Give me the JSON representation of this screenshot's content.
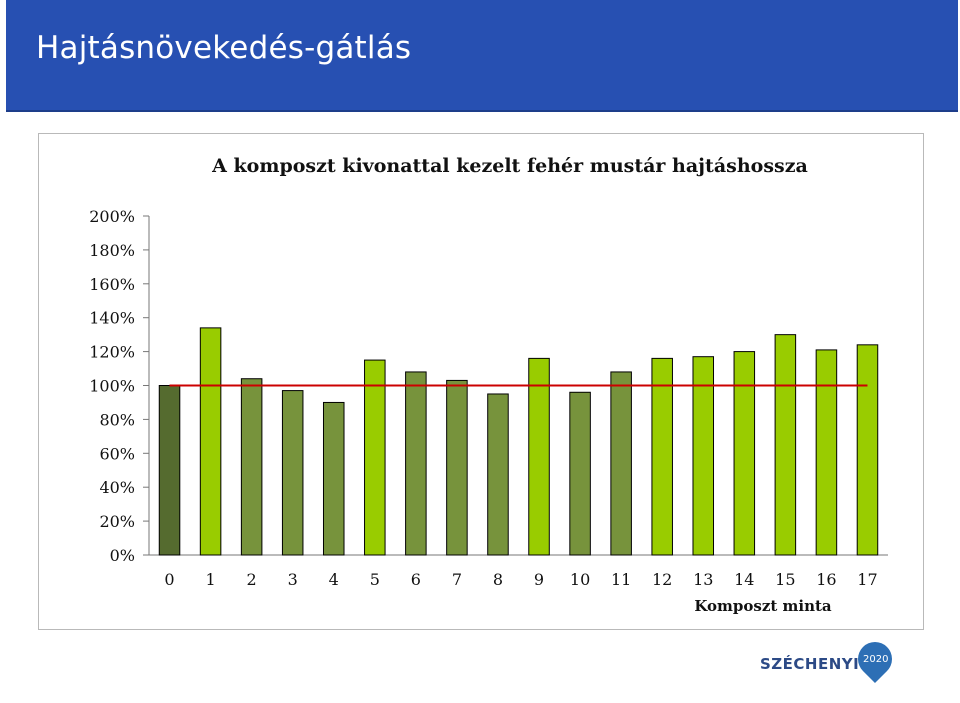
{
  "header": {
    "title": "Hajtásnövekedés-gátlás"
  },
  "logo": {
    "text": "SZÉCHENYI",
    "year": "2020"
  },
  "chart_data": {
    "type": "bar",
    "title": "A komposzt kivonattal kezelt fehér mustár hajtáshossza",
    "xlabel": "Komposzt minta",
    "ylabel": "",
    "ylim": [
      0,
      200
    ],
    "yticks": [
      "0%",
      "20%",
      "40%",
      "60%",
      "80%",
      "100%",
      "120%",
      "140%",
      "160%",
      "180%",
      "200%"
    ],
    "categories": [
      "0",
      "1",
      "2",
      "3",
      "4",
      "5",
      "6",
      "7",
      "8",
      "9",
      "10",
      "11",
      "12",
      "13",
      "14",
      "15",
      "16",
      "17"
    ],
    "values": [
      100,
      134,
      104,
      97,
      90,
      115,
      108,
      103,
      95,
      116,
      96,
      108,
      116,
      117,
      120,
      130,
      121,
      124
    ],
    "bar_colors": [
      "#556b2f",
      "#99cc00",
      "#77933c",
      "#77933c",
      "#77933c",
      "#99cc00",
      "#77933c",
      "#77933c",
      "#77933c",
      "#99cc00",
      "#77933c",
      "#77933c",
      "#99cc00",
      "#99cc00",
      "#99cc00",
      "#99cc00",
      "#99cc00",
      "#99cc00"
    ],
    "reference_line": {
      "value": 100,
      "color": "#cc0000"
    },
    "grid": false
  }
}
